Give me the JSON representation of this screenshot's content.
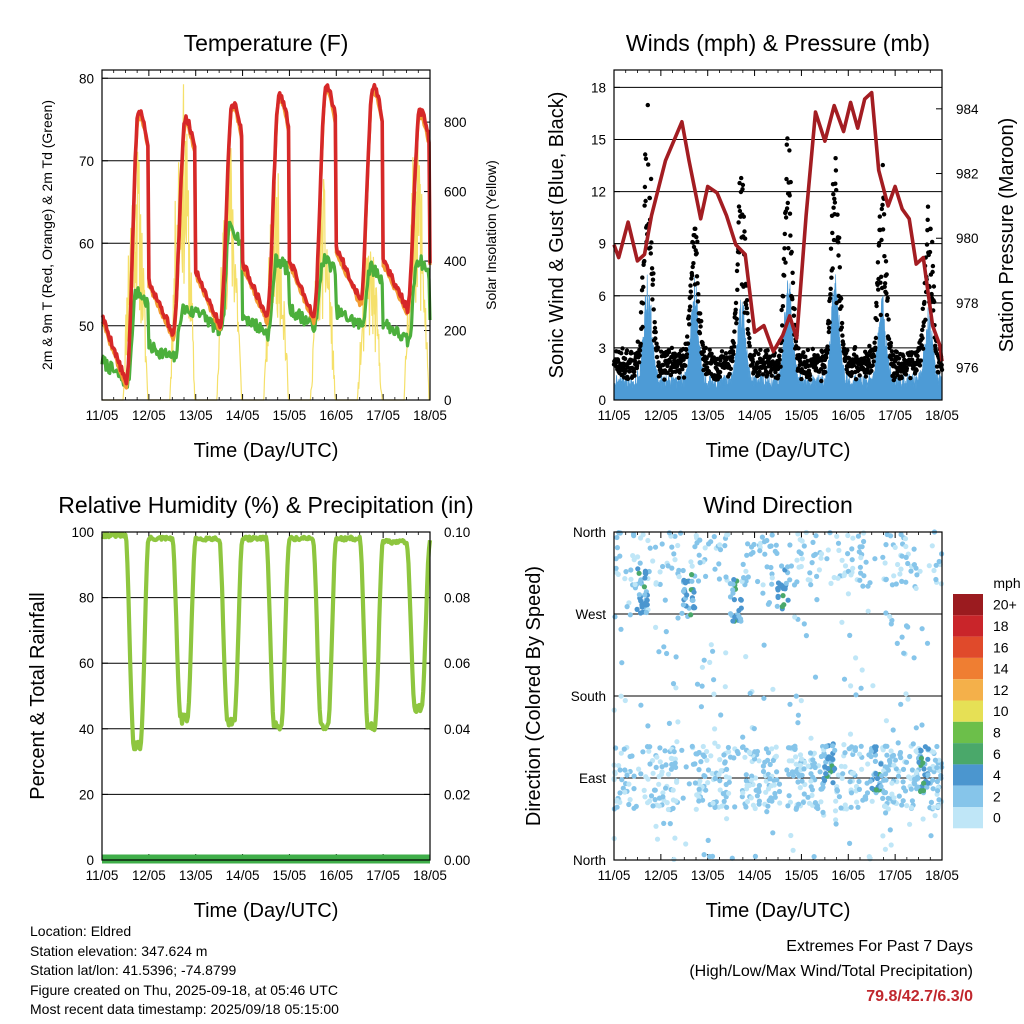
{
  "colors": {
    "temp_2m": "#d62828",
    "temp_9m": "#f39c32",
    "dewpoint": "#4caf3c",
    "solar": "#f5e06a",
    "wind": "#4d9bd6",
    "gust": "#000000",
    "pressure": "#a31d22",
    "rh": "#8ec63f",
    "precip": "#3fae49"
  },
  "chart_data": [
    {
      "type": "line",
      "title": "Temperature (F)",
      "xlabel": "Time (Day/UTC)",
      "ylabel": "2m & 9m T (Red, Orange) & 2m Td (Green)",
      "y2label": "Solar Insolation (Yellow)",
      "x_ticks": [
        "11/05",
        "12/05",
        "13/05",
        "14/05",
        "15/05",
        "16/05",
        "17/05",
        "18/05"
      ],
      "ylim": [
        41,
        81
      ],
      "y_ticks": [
        50,
        60,
        70,
        80
      ],
      "y2lim": [
        0,
        950
      ],
      "y2_ticks": [
        0,
        200,
        400,
        600,
        800
      ],
      "grid": "horizontal at left-axis ticks",
      "daily_temp_max": [
        76,
        75,
        77,
        78,
        79,
        79,
        76
      ],
      "daily_temp_min": [
        43,
        49,
        50,
        51,
        51,
        53,
        52
      ],
      "daily_dewpoint_max": [
        54,
        52,
        62,
        58,
        58,
        57,
        58
      ],
      "daily_dewpoint_min": [
        43,
        46,
        49,
        49,
        50,
        50,
        48
      ],
      "daily_solar_max": [
        780,
        930,
        790,
        680,
        640,
        480,
        800
      ]
    },
    {
      "type": "line",
      "title": "Winds (mph) & Pressure (mb)",
      "xlabel": "Time (Day/UTC)",
      "ylabel": "Sonic Wind & Gust (Blue, Black)",
      "y2label": "Station Pressure (Maroon)",
      "x_ticks": [
        "11/05",
        "12/05",
        "13/05",
        "14/05",
        "15/05",
        "16/05",
        "17/05",
        "18/05"
      ],
      "ylim": [
        0,
        19
      ],
      "y_ticks": [
        0,
        3,
        6,
        9,
        12,
        15,
        18
      ],
      "y2lim": [
        975.0,
        985.2
      ],
      "y2_ticks": [
        976,
        978,
        980,
        982,
        984
      ],
      "grid": "horizontal at left-axis ticks",
      "pressure_trace": [
        {
          "x": 0.0,
          "y": 979.8
        },
        {
          "x": 0.1,
          "y": 979.4
        },
        {
          "x": 0.3,
          "y": 980.5
        },
        {
          "x": 0.5,
          "y": 979.3
        },
        {
          "x": 0.65,
          "y": 979.5
        },
        {
          "x": 0.8,
          "y": 980.7
        },
        {
          "x": 1.1,
          "y": 982.4
        },
        {
          "x": 1.45,
          "y": 983.6
        },
        {
          "x": 1.6,
          "y": 982.4
        },
        {
          "x": 1.85,
          "y": 980.6
        },
        {
          "x": 2.0,
          "y": 981.6
        },
        {
          "x": 2.2,
          "y": 981.4
        },
        {
          "x": 2.4,
          "y": 980.7
        },
        {
          "x": 2.6,
          "y": 979.8
        },
        {
          "x": 2.8,
          "y": 979.5
        },
        {
          "x": 3.0,
          "y": 977.1
        },
        {
          "x": 3.2,
          "y": 977.3
        },
        {
          "x": 3.4,
          "y": 976.5
        },
        {
          "x": 3.6,
          "y": 977.0
        },
        {
          "x": 3.75,
          "y": 977.6
        },
        {
          "x": 3.9,
          "y": 976.9
        },
        {
          "x": 4.1,
          "y": 980.7
        },
        {
          "x": 4.3,
          "y": 983.9
        },
        {
          "x": 4.5,
          "y": 983.0
        },
        {
          "x": 4.7,
          "y": 984.1
        },
        {
          "x": 4.9,
          "y": 983.3
        },
        {
          "x": 5.05,
          "y": 984.2
        },
        {
          "x": 5.2,
          "y": 983.4
        },
        {
          "x": 5.35,
          "y": 984.3
        },
        {
          "x": 5.5,
          "y": 984.5
        },
        {
          "x": 5.65,
          "y": 982.1
        },
        {
          "x": 5.85,
          "y": 981.0
        },
        {
          "x": 6.0,
          "y": 981.6
        },
        {
          "x": 6.15,
          "y": 980.9
        },
        {
          "x": 6.3,
          "y": 980.6
        },
        {
          "x": 6.45,
          "y": 979.2
        },
        {
          "x": 6.6,
          "y": 979.4
        },
        {
          "x": 6.8,
          "y": 977.3
        },
        {
          "x": 6.95,
          "y": 976.7
        },
        {
          "x": 7.0,
          "y": 976.2
        }
      ],
      "daily_wind_max": [
        6,
        6,
        5,
        6,
        6,
        5,
        4
      ],
      "daily_gust_max": [
        16.5,
        9.5,
        13.4,
        14.2,
        12.3,
        12.5,
        10.5
      ]
    },
    {
      "type": "line",
      "title": "Relative Humidity (%) & Precipitation (in)",
      "xlabel": "Time (Day/UTC)",
      "ylabel": "Percent & Total Rainfall",
      "x_ticks": [
        "11/05",
        "12/05",
        "13/05",
        "14/05",
        "15/05",
        "16/05",
        "17/05",
        "18/05"
      ],
      "ylim": [
        0,
        100
      ],
      "y_ticks": [
        0,
        20,
        40,
        60,
        80,
        100
      ],
      "y2lim": [
        0,
        0.1
      ],
      "y2_ticks": [
        "0.00",
        "0.02",
        "0.04",
        "0.06",
        "0.08",
        "0.10"
      ],
      "grid": "horizontal at left-axis ticks",
      "daily_rh_max": [
        99,
        98,
        98,
        98,
        98,
        98,
        97
      ],
      "daily_rh_min": [
        35,
        43,
        42,
        40,
        41,
        40,
        46
      ],
      "precip_total": 0
    },
    {
      "type": "scatter",
      "title": "Wind Direction",
      "xlabel": "Time (Day/UTC)",
      "ylabel": "Direction (Colored By Speed)",
      "x_ticks": [
        "11/05",
        "12/05",
        "13/05",
        "14/05",
        "15/05",
        "16/05",
        "17/05",
        "18/05"
      ],
      "y_ticks": [
        "North",
        "East",
        "South",
        "West",
        "North"
      ],
      "ylim": [
        0,
        360
      ],
      "grid": "horizontal at cardinal directions",
      "legend": {
        "title": "mph",
        "placement": "right",
        "labels": [
          "0",
          "2",
          "4",
          "6",
          "8",
          "10",
          "12",
          "14",
          "16",
          "18",
          "20+"
        ],
        "colors": [
          "#bfe6f7",
          "#86c5ea",
          "#4b96cf",
          "#4aa86a",
          "#6cbf4a",
          "#e6e055",
          "#f4b04a",
          "#ef7e32",
          "#e04a2b",
          "#c9252a",
          "#9b1b1f"
        ]
      },
      "day_peaks_direction_deg": [
        295,
        290,
        285,
        300,
        105,
        100,
        100
      ]
    }
  ],
  "info": {
    "location": "Location: Eldred",
    "elevation": "Station elevation: 347.624 m",
    "latlon": "Station lat/lon: 41.5396; -74.8799",
    "created": "Figure created on Thu, 2025-09-18, at 05:46 UTC",
    "recent": "Most recent data timestamp: 2025/09/18 05:15:00"
  },
  "extremes": {
    "line1": "Extremes For Past 7 Days",
    "line2": "(High/Low/Max Wind/Total Precipitation)",
    "values": "79.8/42.7/6.3/0"
  }
}
